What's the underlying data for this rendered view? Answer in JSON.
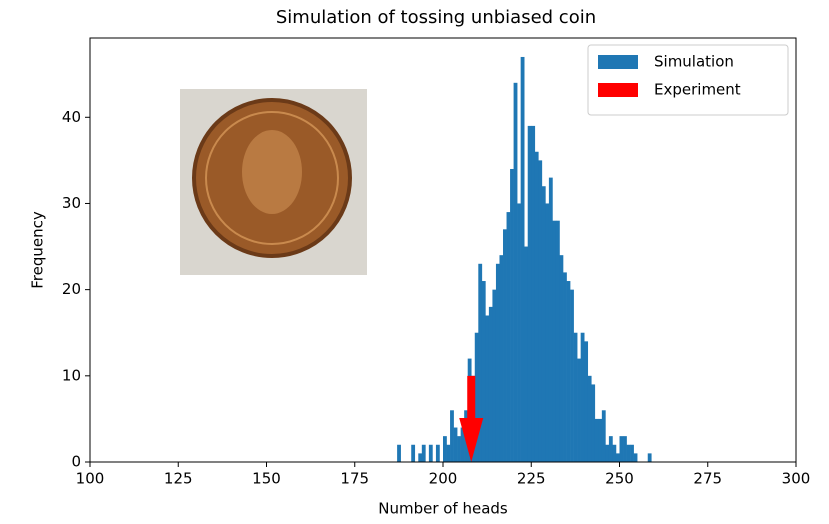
{
  "chart_data": {
    "type": "histogram",
    "title": "Simulation of tossing unbiased coin",
    "x_label": "Number of heads",
    "y_label": "Frequency",
    "bins": [
      187,
      188,
      189,
      190,
      191,
      192,
      193,
      194,
      195,
      196,
      197,
      198,
      199,
      200,
      201,
      202,
      203,
      204,
      205,
      206,
      207,
      208,
      209,
      210,
      211,
      212,
      213,
      214,
      215,
      216,
      217,
      218,
      219,
      220,
      221,
      222,
      223,
      224,
      225,
      226,
      227,
      228,
      229,
      230,
      231,
      232,
      233,
      234,
      235,
      236,
      237,
      238,
      239,
      240,
      241,
      242,
      243,
      244,
      245,
      246,
      247,
      248,
      249,
      250,
      251,
      252,
      253,
      254,
      255,
      256,
      257,
      258,
      259
    ],
    "series": [
      {
        "name": "Simulation",
        "color": "#1f77b4",
        "values": [
          2,
          0,
          0,
          0,
          2,
          0,
          1,
          2,
          0,
          2,
          0,
          2,
          0,
          3,
          2,
          6,
          4,
          3,
          4,
          6,
          12,
          10,
          15,
          23,
          21,
          17,
          18,
          20,
          23,
          24,
          27,
          29,
          34,
          44,
          30,
          47,
          25,
          39,
          39,
          36,
          35,
          32,
          30,
          33,
          28,
          28,
          24,
          22,
          21,
          20,
          15,
          12,
          15,
          14,
          10,
          9,
          5,
          5,
          6,
          2,
          3,
          2,
          1,
          3,
          3,
          2,
          2,
          1,
          0,
          0,
          0,
          1
        ]
      }
    ],
    "experiment": {
      "name": "Experiment",
      "color": "#ff0000",
      "x": 208,
      "y": 10
    },
    "xlim": [
      100,
      300
    ],
    "ylim": [
      0,
      49.2
    ],
    "xticks": [
      100,
      125,
      150,
      175,
      200,
      225,
      250,
      275,
      300
    ],
    "yticks": [
      0,
      10,
      20,
      30,
      40
    ],
    "legend": "upper right"
  }
}
